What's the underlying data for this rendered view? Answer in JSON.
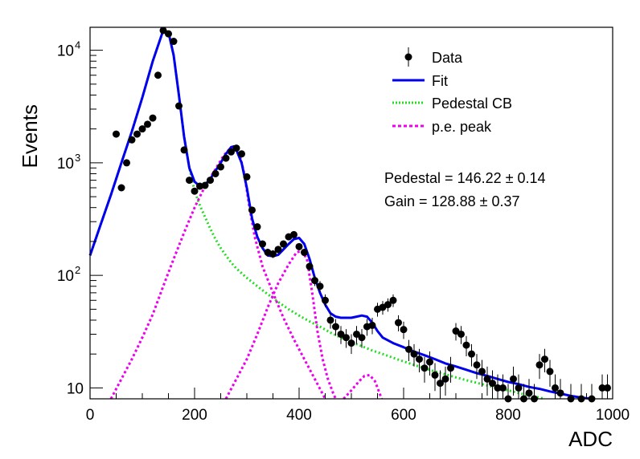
{
  "chart_data": {
    "type": "scatter",
    "xlabel": "ADC",
    "ylabel": "Events",
    "xlim": [
      0,
      1000
    ],
    "ylim": [
      8,
      16000
    ],
    "yscale": "log",
    "grid": false,
    "legend_position": "top-right",
    "x_ticks": [
      "0",
      "200",
      "400",
      "600",
      "800",
      "1000"
    ],
    "y_ticks": [
      {
        "value": 10,
        "base": "10",
        "exp": ""
      },
      {
        "value": 100,
        "base": "10",
        "exp": "2"
      },
      {
        "value": 1000,
        "base": "10",
        "exp": "3"
      },
      {
        "value": 10000,
        "base": "10",
        "exp": "4"
      }
    ],
    "annotations": [
      "Pedestal = 146.22 ± 0.14",
      "Gain = 128.88 ± 0.37"
    ],
    "legend": [
      {
        "label": "Data",
        "style": "marker",
        "color": "#000000"
      },
      {
        "label": "Fit",
        "style": "solid",
        "color": "#0000ee"
      },
      {
        "label": "Pedestal CB",
        "style": "dotted",
        "color": "#22dd22"
      },
      {
        "label": "p.e. peak",
        "style": "dashed",
        "color": "#ee00ee"
      }
    ],
    "series": [
      {
        "name": "Data",
        "color": "#000000",
        "points": [
          [
            50,
            1800
          ],
          [
            60,
            600
          ],
          [
            70,
            1000
          ],
          [
            80,
            1600
          ],
          [
            90,
            1800
          ],
          [
            100,
            2000
          ],
          [
            110,
            2200
          ],
          [
            120,
            2500
          ],
          [
            130,
            6000
          ],
          [
            140,
            15000
          ],
          [
            150,
            14000
          ],
          [
            160,
            12000
          ],
          [
            170,
            3200
          ],
          [
            180,
            1300
          ],
          [
            190,
            700
          ],
          [
            200,
            560
          ],
          [
            210,
            620
          ],
          [
            220,
            630
          ],
          [
            230,
            700
          ],
          [
            240,
            800
          ],
          [
            250,
            920
          ],
          [
            260,
            1100
          ],
          [
            270,
            1250
          ],
          [
            280,
            1350
          ],
          [
            290,
            1200
          ],
          [
            300,
            750
          ],
          [
            310,
            380
          ],
          [
            320,
            270
          ],
          [
            330,
            190
          ],
          [
            340,
            160
          ],
          [
            350,
            155
          ],
          [
            360,
            170
          ],
          [
            370,
            190
          ],
          [
            380,
            220
          ],
          [
            390,
            230
          ],
          [
            400,
            180
          ],
          [
            410,
            160
          ],
          [
            420,
            120
          ],
          [
            430,
            90
          ],
          [
            440,
            80
          ],
          [
            450,
            60
          ],
          [
            460,
            40
          ],
          [
            470,
            35
          ],
          [
            480,
            30
          ],
          [
            490,
            28
          ],
          [
            500,
            25
          ],
          [
            510,
            30
          ],
          [
            520,
            28
          ],
          [
            530,
            35
          ],
          [
            540,
            36
          ],
          [
            550,
            50
          ],
          [
            560,
            52
          ],
          [
            570,
            55
          ],
          [
            580,
            60
          ],
          [
            590,
            38
          ],
          [
            600,
            33
          ],
          [
            610,
            22
          ],
          [
            620,
            20
          ],
          [
            630,
            18
          ],
          [
            640,
            15
          ],
          [
            650,
            17
          ],
          [
            660,
            13
          ],
          [
            670,
            11
          ],
          [
            680,
            12
          ],
          [
            690,
            15
          ],
          [
            700,
            32
          ],
          [
            710,
            30
          ],
          [
            720,
            24
          ],
          [
            730,
            20
          ],
          [
            740,
            16
          ],
          [
            750,
            14
          ],
          [
            760,
            12
          ],
          [
            770,
            11
          ],
          [
            780,
            10
          ],
          [
            790,
            10
          ],
          [
            800,
            8
          ],
          [
            810,
            12
          ],
          [
            820,
            10
          ],
          [
            830,
            8
          ],
          [
            840,
            9
          ],
          [
            850,
            8
          ],
          [
            860,
            16
          ],
          [
            870,
            18
          ],
          [
            880,
            14
          ],
          [
            890,
            10
          ],
          [
            900,
            9
          ],
          [
            920,
            8
          ],
          [
            940,
            8
          ],
          [
            960,
            8
          ],
          [
            980,
            10
          ],
          [
            990,
            10
          ]
        ]
      },
      {
        "name": "Fit",
        "color": "#0000ee",
        "points": [
          [
            0,
            150
          ],
          [
            20,
            280
          ],
          [
            40,
            520
          ],
          [
            60,
            1000
          ],
          [
            80,
            1900
          ],
          [
            100,
            3800
          ],
          [
            120,
            8000
          ],
          [
            140,
            15000
          ],
          [
            150,
            14500
          ],
          [
            160,
            9000
          ],
          [
            170,
            4000
          ],
          [
            180,
            1700
          ],
          [
            190,
            900
          ],
          [
            200,
            680
          ],
          [
            210,
            620
          ],
          [
            220,
            640
          ],
          [
            230,
            720
          ],
          [
            240,
            850
          ],
          [
            250,
            1000
          ],
          [
            260,
            1200
          ],
          [
            270,
            1380
          ],
          [
            275,
            1400
          ],
          [
            280,
            1300
          ],
          [
            290,
            1000
          ],
          [
            300,
            600
          ],
          [
            310,
            320
          ],
          [
            320,
            220
          ],
          [
            330,
            175
          ],
          [
            340,
            150
          ],
          [
            350,
            148
          ],
          [
            360,
            152
          ],
          [
            370,
            170
          ],
          [
            380,
            190
          ],
          [
            390,
            210
          ],
          [
            400,
            215
          ],
          [
            410,
            190
          ],
          [
            420,
            140
          ],
          [
            430,
            95
          ],
          [
            440,
            70
          ],
          [
            450,
            55
          ],
          [
            460,
            46
          ],
          [
            470,
            43
          ],
          [
            480,
            42
          ],
          [
            490,
            42
          ],
          [
            500,
            42
          ],
          [
            510,
            43
          ],
          [
            520,
            44
          ],
          [
            530,
            43
          ],
          [
            540,
            38
          ],
          [
            550,
            32
          ],
          [
            560,
            28
          ],
          [
            580,
            25
          ],
          [
            600,
            23
          ],
          [
            620,
            21
          ],
          [
            640,
            19.5
          ],
          [
            660,
            18
          ],
          [
            680,
            16.5
          ],
          [
            700,
            15.5
          ],
          [
            720,
            14.5
          ],
          [
            740,
            13.5
          ],
          [
            760,
            12.8
          ],
          [
            780,
            12
          ],
          [
            800,
            11.3
          ],
          [
            820,
            10.8
          ],
          [
            840,
            10.2
          ],
          [
            860,
            9.8
          ],
          [
            880,
            9.3
          ],
          [
            900,
            8.9
          ],
          [
            920,
            8.5
          ],
          [
            940,
            8.2
          ],
          [
            960,
            8
          ]
        ]
      },
      {
        "name": "Pedestal CB",
        "color": "#22dd22",
        "points": [
          [
            0,
            150
          ],
          [
            20,
            280
          ],
          [
            40,
            520
          ],
          [
            60,
            1000
          ],
          [
            80,
            1900
          ],
          [
            100,
            3800
          ],
          [
            120,
            8000
          ],
          [
            140,
            15000
          ],
          [
            150,
            14500
          ],
          [
            160,
            9000
          ],
          [
            170,
            4000
          ],
          [
            180,
            1700
          ],
          [
            190,
            900
          ],
          [
            200,
            560
          ],
          [
            210,
            420
          ],
          [
            220,
            330
          ],
          [
            230,
            260
          ],
          [
            240,
            210
          ],
          [
            250,
            175
          ],
          [
            260,
            150
          ],
          [
            270,
            130
          ],
          [
            280,
            115
          ],
          [
            300,
            95
          ],
          [
            320,
            80
          ],
          [
            340,
            68
          ],
          [
            360,
            58
          ],
          [
            380,
            50
          ],
          [
            400,
            44
          ],
          [
            420,
            39
          ],
          [
            440,
            35
          ],
          [
            460,
            31
          ],
          [
            480,
            28
          ],
          [
            500,
            25.5
          ],
          [
            520,
            23.5
          ],
          [
            540,
            21.5
          ],
          [
            560,
            20
          ],
          [
            580,
            18.5
          ],
          [
            600,
            17.2
          ],
          [
            620,
            16
          ],
          [
            640,
            15
          ],
          [
            660,
            14
          ],
          [
            680,
            13.2
          ],
          [
            700,
            12.4
          ],
          [
            720,
            11.7
          ],
          [
            740,
            11.1
          ],
          [
            760,
            10.5
          ],
          [
            780,
            10
          ],
          [
            800,
            9.5
          ],
          [
            820,
            9
          ],
          [
            840,
            8.6
          ],
          [
            860,
            8.2
          ],
          [
            870,
            8
          ]
        ]
      },
      {
        "name": "p.e. peak 1",
        "color": "#ee00ee",
        "points": [
          [
            40,
            8
          ],
          [
            60,
            12
          ],
          [
            80,
            18
          ],
          [
            100,
            28
          ],
          [
            120,
            45
          ],
          [
            140,
            80
          ],
          [
            160,
            140
          ],
          [
            180,
            240
          ],
          [
            200,
            400
          ],
          [
            220,
            620
          ],
          [
            240,
            880
          ],
          [
            255,
            1150
          ],
          [
            265,
            1300
          ],
          [
            275,
            1380
          ],
          [
            285,
            1250
          ],
          [
            295,
            800
          ],
          [
            305,
            400
          ],
          [
            315,
            220
          ],
          [
            330,
            120
          ],
          [
            350,
            70
          ],
          [
            370,
            42
          ],
          [
            390,
            27
          ],
          [
            410,
            18
          ],
          [
            430,
            12
          ],
          [
            450,
            8
          ]
        ]
      },
      {
        "name": "p.e. peak 2",
        "color": "#ee00ee",
        "points": [
          [
            260,
            8
          ],
          [
            280,
            12
          ],
          [
            300,
            18
          ],
          [
            320,
            30
          ],
          [
            340,
            52
          ],
          [
            360,
            85
          ],
          [
            380,
            125
          ],
          [
            395,
            160
          ],
          [
            405,
            165
          ],
          [
            415,
            140
          ],
          [
            425,
            70
          ],
          [
            435,
            32
          ],
          [
            445,
            18
          ],
          [
            455,
            12
          ],
          [
            465,
            9
          ],
          [
            470,
            8
          ]
        ]
      },
      {
        "name": "p.e. peak 3",
        "color": "#ee00ee",
        "points": [
          [
            485,
            8
          ],
          [
            500,
            9.5
          ],
          [
            515,
            11.5
          ],
          [
            525,
            12.8
          ],
          [
            535,
            13
          ],
          [
            545,
            11.5
          ],
          [
            552,
            9.5
          ],
          [
            558,
            8
          ]
        ]
      }
    ]
  }
}
